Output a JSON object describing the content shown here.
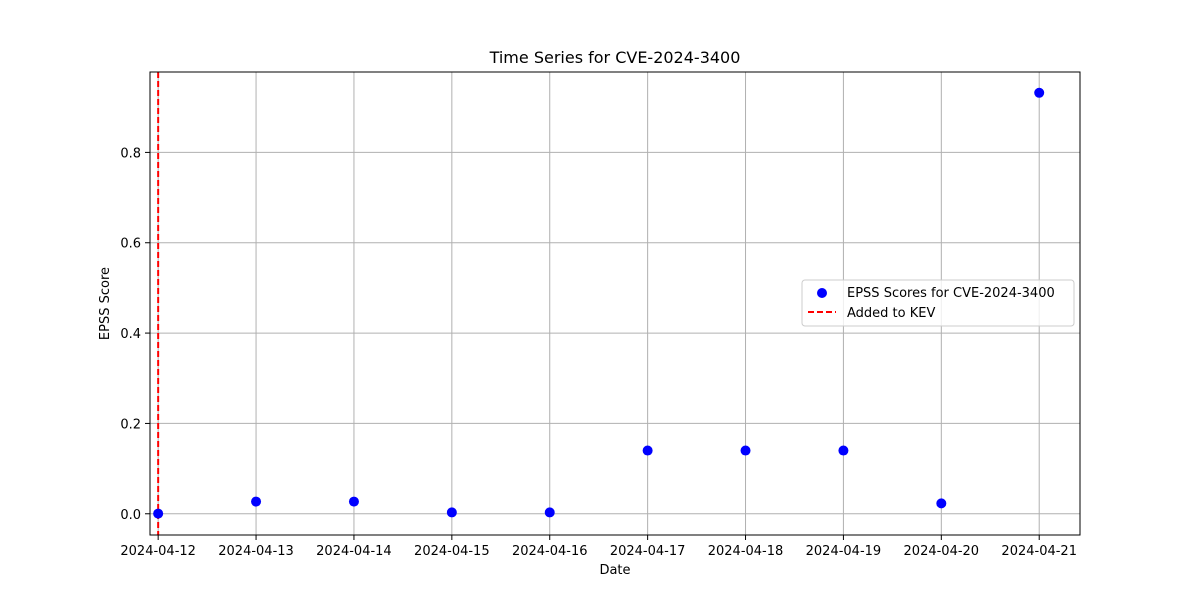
{
  "chart_data": {
    "type": "scatter",
    "title": "Time Series for CVE-2024-3400",
    "xlabel": "Date",
    "ylabel": "EPSS Score",
    "x_tick_labels": [
      "2024-04-12",
      "2024-04-13",
      "2024-04-14",
      "2024-04-15",
      "2024-04-16",
      "2024-04-17",
      "2024-04-18",
      "2024-04-19",
      "2024-04-20",
      "2024-04-21"
    ],
    "y_tick_labels": [
      "0.0",
      "0.2",
      "0.4",
      "0.6",
      "0.8"
    ],
    "y_ticks": [
      0.0,
      0.2,
      0.4,
      0.6,
      0.8
    ],
    "xlim": [
      "2024-04-11T22:00",
      "2024-04-21T10:00"
    ],
    "ylim": [
      -0.047,
      0.978
    ],
    "grid": true,
    "legend_position": "center-right",
    "series": [
      {
        "name": "EPSS Scores for CVE-2024-3400",
        "color": "#0000ff",
        "marker": "circle",
        "points": [
          {
            "x": "2024-04-12",
            "y": 0.0004
          },
          {
            "x": "2024-04-13",
            "y": 0.027
          },
          {
            "x": "2024-04-14",
            "y": 0.027
          },
          {
            "x": "2024-04-15",
            "y": 0.003
          },
          {
            "x": "2024-04-16",
            "y": 0.003
          },
          {
            "x": "2024-04-17",
            "y": 0.14
          },
          {
            "x": "2024-04-18",
            "y": 0.14
          },
          {
            "x": "2024-04-19",
            "y": 0.14
          },
          {
            "x": "2024-04-20",
            "y": 0.023
          },
          {
            "x": "2024-04-21",
            "y": 0.932
          }
        ]
      }
    ],
    "reference_lines": [
      {
        "name": "Added to KEV",
        "orientation": "vertical",
        "x": "2024-04-12",
        "color": "#ff0000",
        "style": "dashed"
      }
    ]
  }
}
